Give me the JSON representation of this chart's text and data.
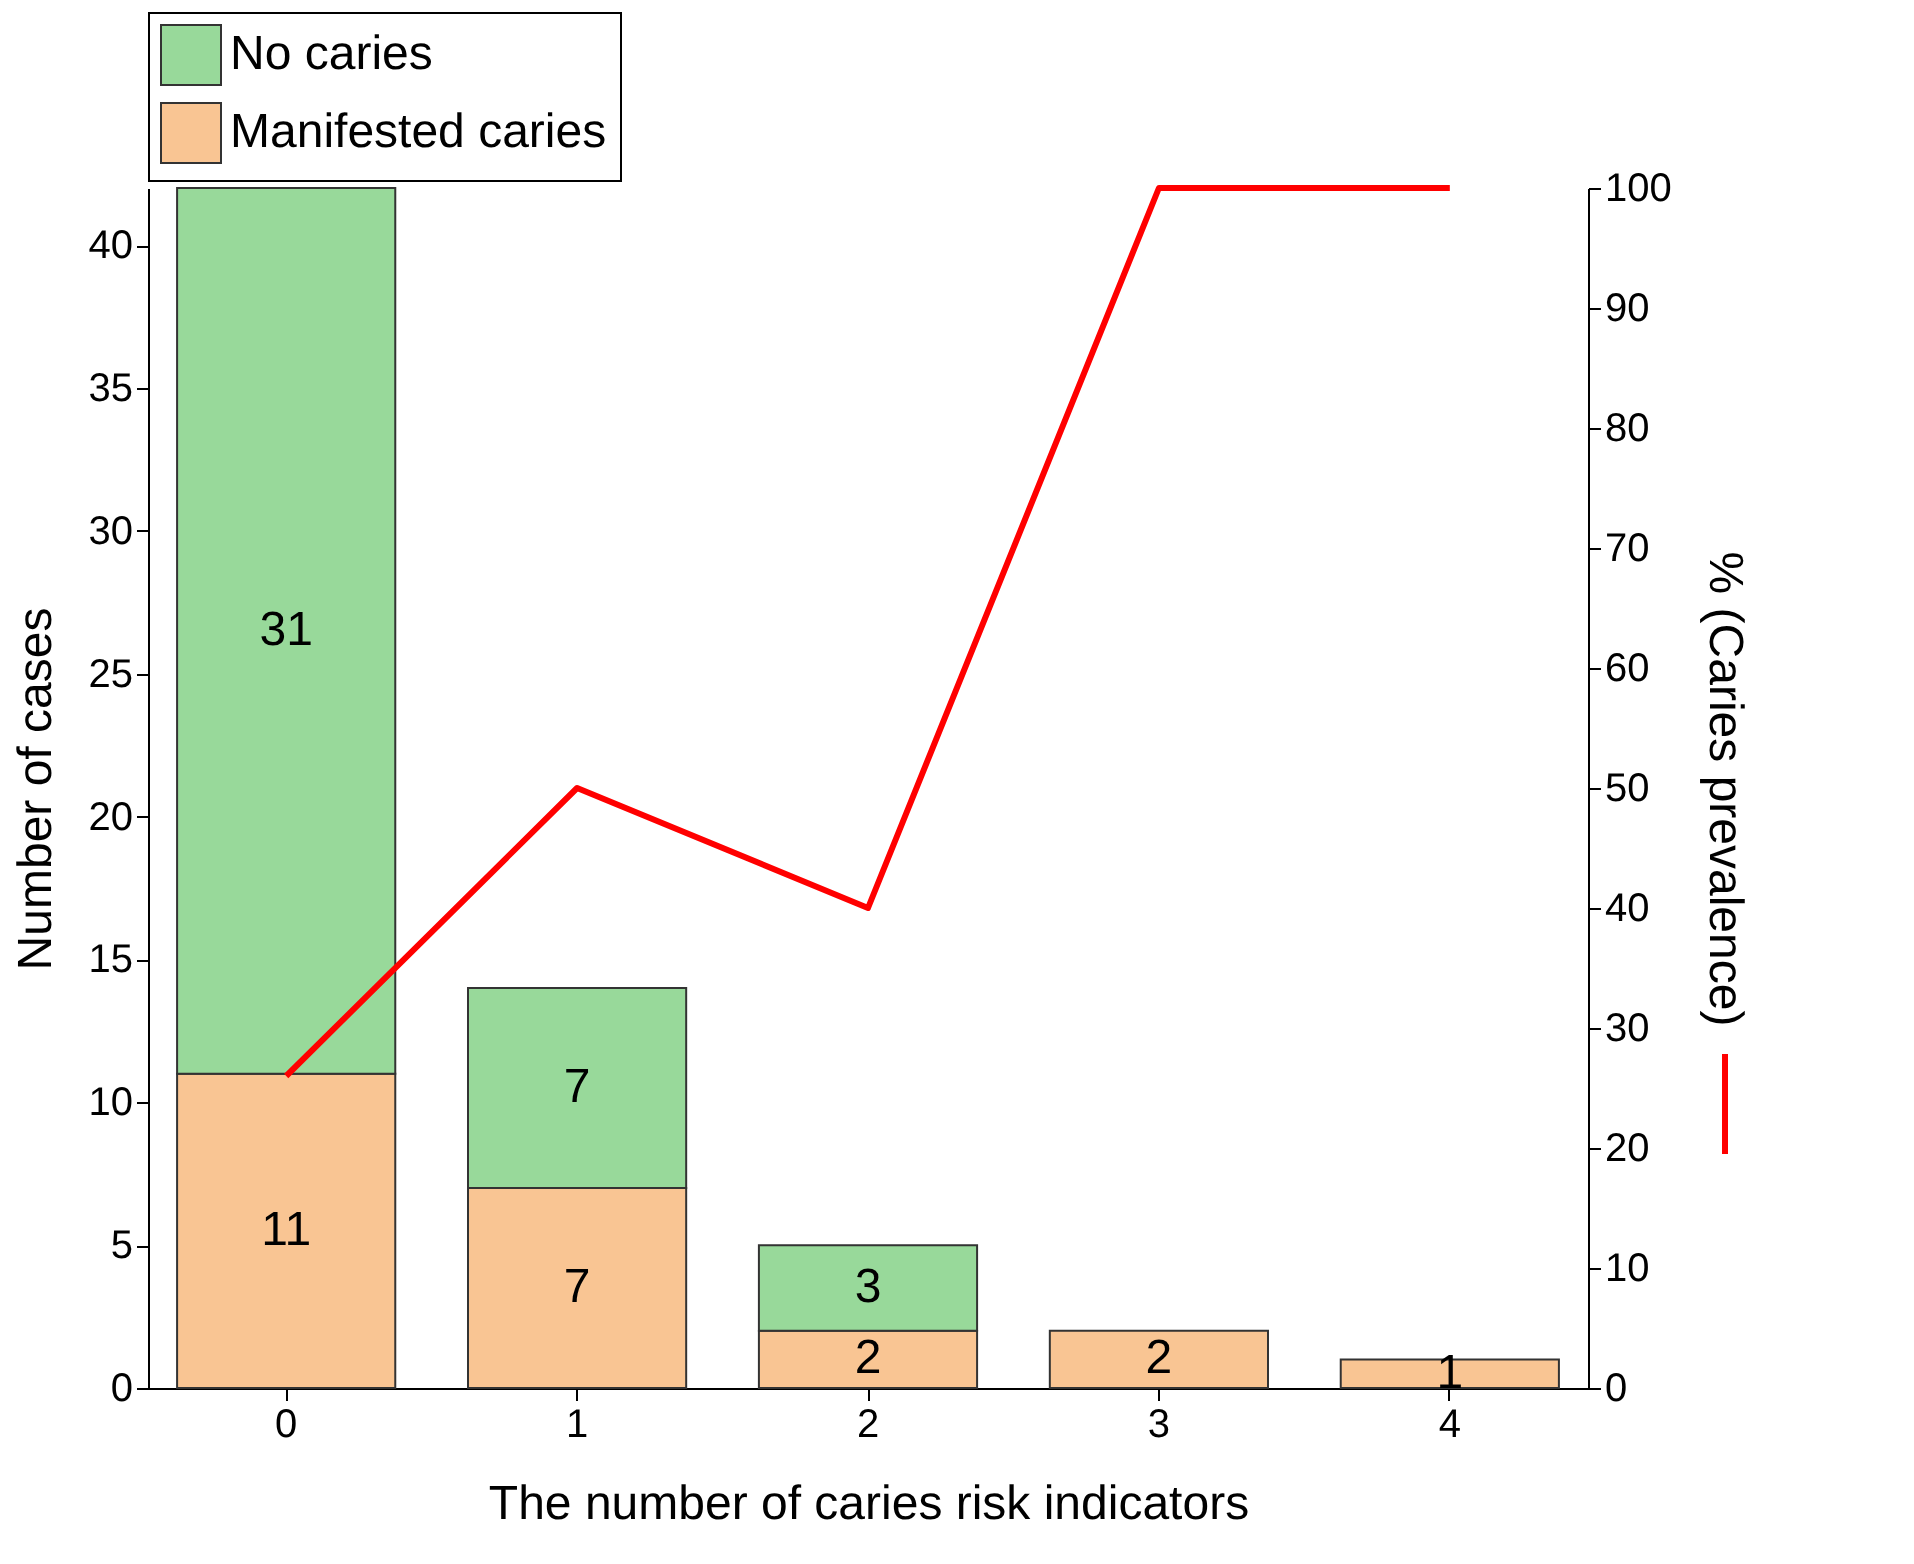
{
  "chart_data": {
    "type": "bar",
    "stacked": true,
    "xlabel": "The number of caries risk indicators",
    "ylabel": "Number of cases",
    "y2label": "% (Caries prevalence)",
    "categories": [
      "0",
      "1",
      "2",
      "3",
      "4"
    ],
    "series": [
      {
        "name": "Manifested caries",
        "color": "#f9c593",
        "values": [
          11,
          7,
          2,
          2,
          1
        ],
        "value_labels": [
          "11",
          "7",
          "2",
          "2",
          "1"
        ]
      },
      {
        "name": "No caries",
        "color": "#98d99a",
        "values": [
          31,
          7,
          3,
          0,
          0
        ],
        "value_labels": [
          "31",
          "7",
          "3",
          null,
          null
        ]
      },
      {
        "type": "line",
        "axis": "y2",
        "color": "#ff0000",
        "values": [
          26,
          50,
          40,
          100,
          100
        ]
      }
    ],
    "ylim": [
      0,
      42
    ],
    "yticks": [
      0,
      5,
      10,
      15,
      20,
      25,
      30,
      35,
      40
    ],
    "y2lim": [
      0,
      100
    ],
    "y2ticks": [
      0,
      10,
      20,
      30,
      40,
      50,
      60,
      70,
      80,
      90,
      100
    ],
    "legend": "top",
    "grid": false,
    "marker": "none",
    "line_style": "solid"
  }
}
